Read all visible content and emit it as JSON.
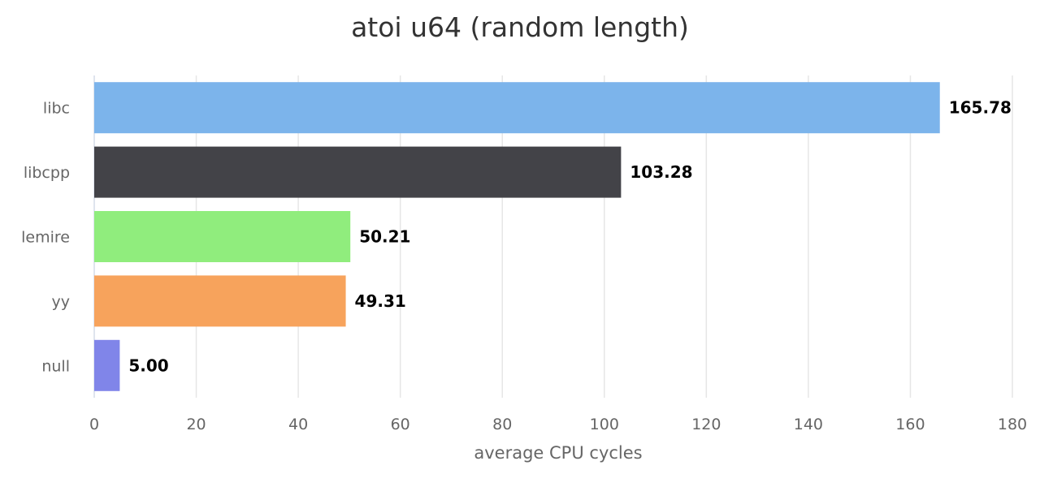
{
  "chart_data": {
    "type": "bar",
    "orientation": "horizontal",
    "title": "atoi u64 (random length)",
    "xlabel": "average CPU cycles",
    "ylabel": "",
    "categories": [
      "libc",
      "libcpp",
      "lemire",
      "yy",
      "null"
    ],
    "values": [
      165.78,
      103.28,
      50.21,
      49.31,
      5.0
    ],
    "value_labels": [
      "165.78",
      "103.28",
      "50.21",
      "49.31",
      "5.00"
    ],
    "colors": [
      "#7cb4eb",
      "#434348",
      "#90ed7d",
      "#f7a35c",
      "#8085e9"
    ],
    "xlim": [
      0,
      180
    ],
    "xticks": [
      0,
      20,
      40,
      60,
      80,
      100,
      120,
      140,
      160,
      180
    ],
    "grid": true,
    "legend": "none"
  }
}
